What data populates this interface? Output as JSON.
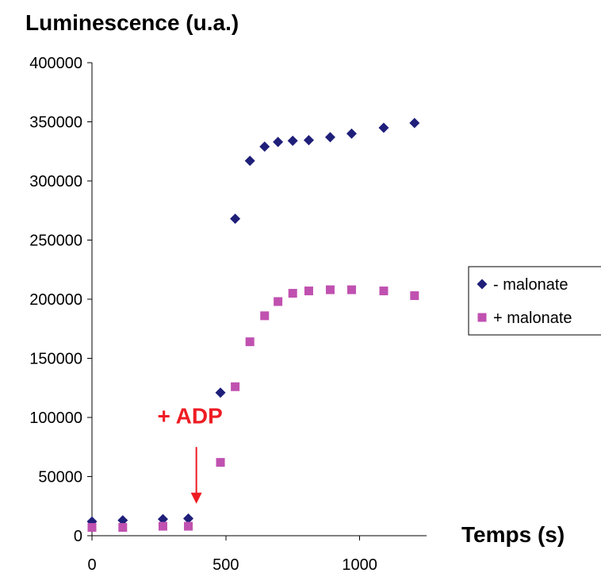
{
  "chart_data": {
    "type": "scatter",
    "title": "Luminescence (u.a.)",
    "xlabel": "Temps (s)",
    "ylabel": "",
    "xlim": [
      0,
      1250
    ],
    "ylim": [
      0,
      400000
    ],
    "x_ticks": [
      0,
      500,
      1000
    ],
    "y_ticks": [
      0,
      50000,
      100000,
      150000,
      200000,
      250000,
      300000,
      350000,
      400000
    ],
    "x_tick_labels": [
      "0",
      "500",
      "1000"
    ],
    "y_tick_labels": [
      "0",
      "50000",
      "100000",
      "150000",
      "200000",
      "250000",
      "300000",
      "350000",
      "400000"
    ],
    "grid": false,
    "legend_position": "right",
    "series": [
      {
        "name": "- malonate",
        "marker": "diamond",
        "color": "#1f1f7a",
        "points": [
          {
            "x": 0,
            "y": 12000
          },
          {
            "x": 115,
            "y": 13000
          },
          {
            "x": 265,
            "y": 14000
          },
          {
            "x": 360,
            "y": 14500
          },
          {
            "x": 480,
            "y": 121000
          },
          {
            "x": 535,
            "y": 268000
          },
          {
            "x": 590,
            "y": 317000
          },
          {
            "x": 645,
            "y": 329000
          },
          {
            "x": 695,
            "y": 333000
          },
          {
            "x": 750,
            "y": 334000
          },
          {
            "x": 810,
            "y": 334500
          },
          {
            "x": 890,
            "y": 337000
          },
          {
            "x": 970,
            "y": 340000
          },
          {
            "x": 1090,
            "y": 345000
          },
          {
            "x": 1205,
            "y": 349000
          }
        ]
      },
      {
        "name": "+ malonate",
        "marker": "square",
        "color": "#c051b0",
        "points": [
          {
            "x": 0,
            "y": 7000
          },
          {
            "x": 115,
            "y": 7000
          },
          {
            "x": 265,
            "y": 8000
          },
          {
            "x": 360,
            "y": 8000
          },
          {
            "x": 480,
            "y": 62000
          },
          {
            "x": 535,
            "y": 126000
          },
          {
            "x": 590,
            "y": 164000
          },
          {
            "x": 645,
            "y": 186000
          },
          {
            "x": 695,
            "y": 198000
          },
          {
            "x": 750,
            "y": 205000
          },
          {
            "x": 810,
            "y": 207000
          },
          {
            "x": 890,
            "y": 208000
          },
          {
            "x": 970,
            "y": 208000
          },
          {
            "x": 1090,
            "y": 207000
          },
          {
            "x": 1205,
            "y": 203000
          }
        ]
      }
    ],
    "annotations": [
      {
        "text": "+ ADP",
        "color": "#ee1c24",
        "arrow_x": 390,
        "arrow_y_start": 75000,
        "arrow_y_end": 27000
      }
    ]
  }
}
